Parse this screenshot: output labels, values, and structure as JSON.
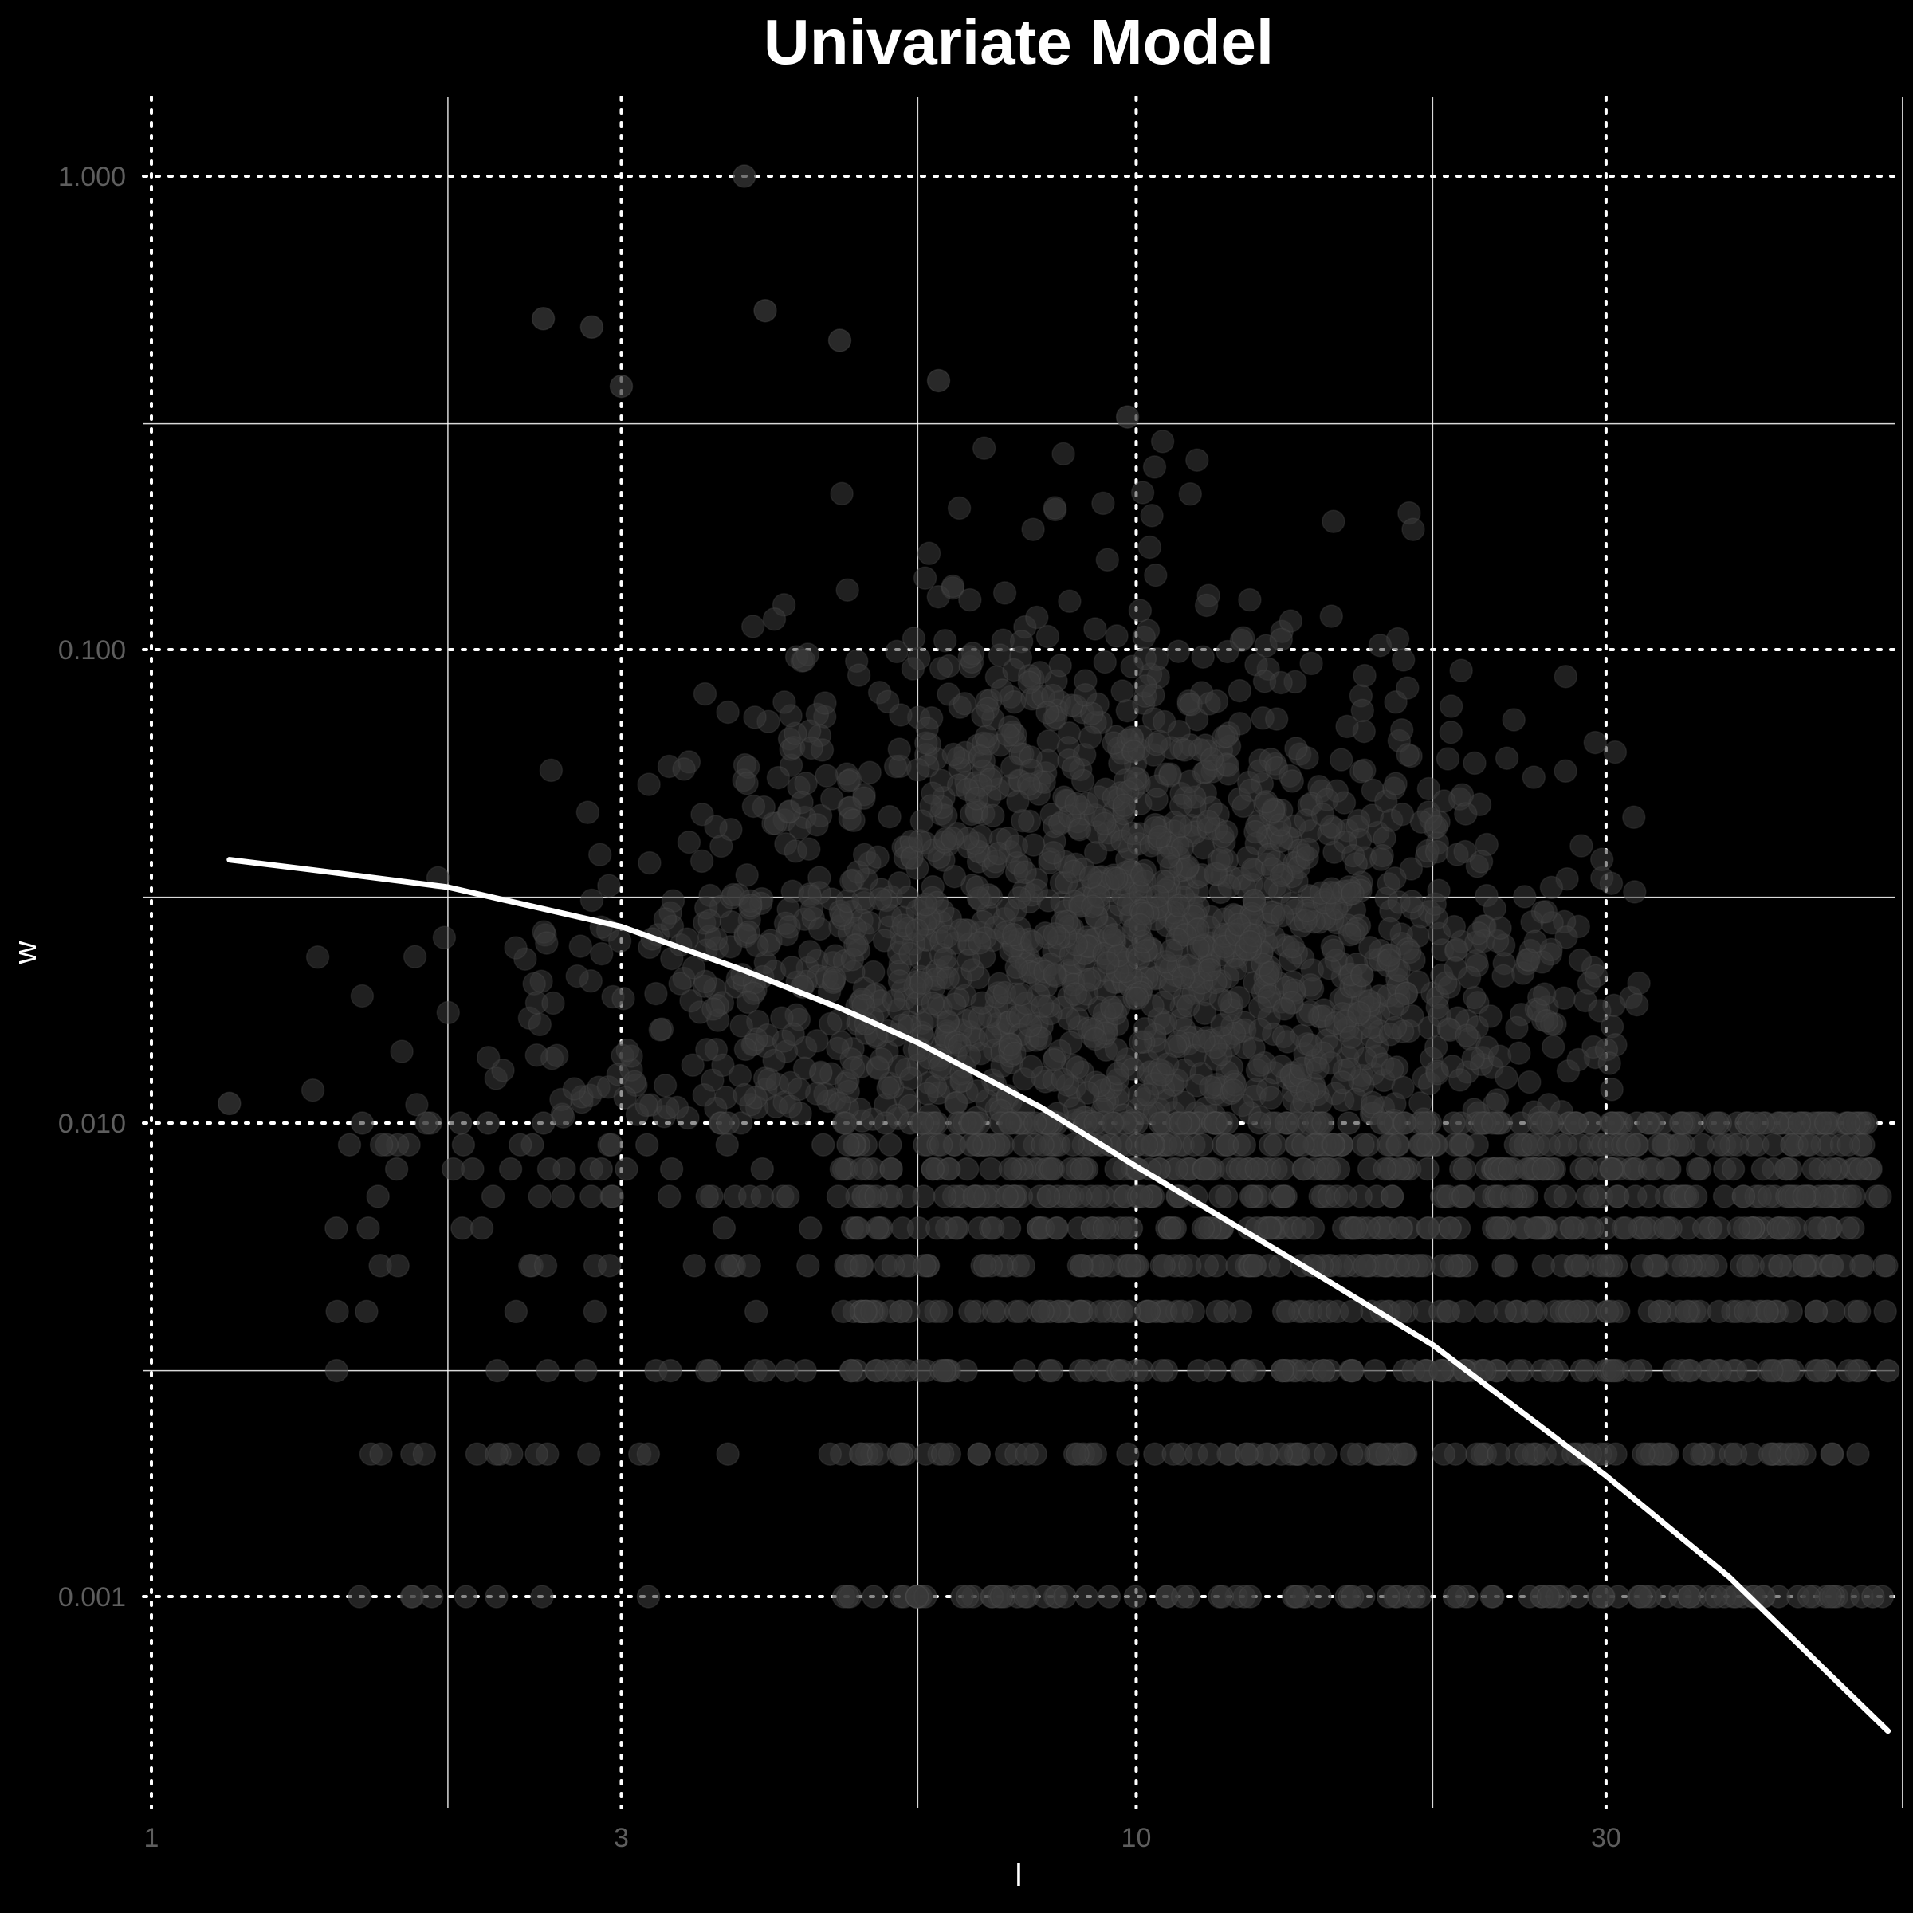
{
  "chart_data": {
    "type": "scatter",
    "title": "Univariate Model",
    "xlabel": "l",
    "ylabel": "w",
    "x_scale": "log",
    "y_scale": "log",
    "xlim": [
      1,
      60
    ],
    "ylim": [
      0.0003,
      1.5
    ],
    "x_ticks": [
      {
        "value": 1,
        "label": "1"
      },
      {
        "value": 3,
        "label": "3"
      },
      {
        "value": 10,
        "label": "10"
      },
      {
        "value": 30,
        "label": "30"
      }
    ],
    "y_ticks": [
      {
        "value": 0.001,
        "label": "0.001"
      },
      {
        "value": 0.01,
        "label": "0.010"
      },
      {
        "value": 0.1,
        "label": "0.100"
      },
      {
        "value": 1,
        "label": "1.000"
      }
    ],
    "x_grid": {
      "major": [
        1,
        3,
        10,
        30
      ],
      "minor": [
        2,
        6,
        20,
        60
      ]
    },
    "y_grid": {
      "major": [
        0.001,
        0.01,
        0.1,
        1
      ],
      "minor": [
        0.003,
        0.03,
        0.3
      ]
    },
    "grid": true,
    "legend": "none",
    "colors": {
      "background": "#000000",
      "points": "#3a3a3a",
      "fit_line": "#ffffff",
      "major_grid": "#ffffff",
      "minor_grid": "#ffffff",
      "tick_text": "#5e5e5e"
    },
    "scatter": {
      "x_range": [
        1.2,
        58
      ],
      "y_range": [
        0.001,
        1.0
      ],
      "y_levels": [
        0.001,
        0.002,
        0.003,
        0.004,
        0.005,
        0.006,
        0.007,
        0.008,
        0.009,
        0.01
      ],
      "notable_points": [
        {
          "x": 4.0,
          "y": 1.0
        },
        {
          "x": 2.5,
          "y": 0.5
        },
        {
          "x": 2.8,
          "y": 0.48
        },
        {
          "x": 4.2,
          "y": 0.52
        },
        {
          "x": 5.0,
          "y": 0.45
        },
        {
          "x": 6.3,
          "y": 0.37
        },
        {
          "x": 3.0,
          "y": 0.36
        },
        {
          "x": 9.8,
          "y": 0.31
        },
        {
          "x": 1.2,
          "y": 0.011
        },
        {
          "x": 58.0,
          "y": 0.003
        },
        {
          "x": 56.0,
          "y": 0.001
        }
      ]
    },
    "fit_line": [
      {
        "x": 1.2,
        "y": 0.036
      },
      {
        "x": 1.5,
        "y": 0.034
      },
      {
        "x": 2.0,
        "y": 0.0315
      },
      {
        "x": 3.0,
        "y": 0.026
      },
      {
        "x": 4.0,
        "y": 0.021
      },
      {
        "x": 5.0,
        "y": 0.0175
      },
      {
        "x": 6.0,
        "y": 0.0148
      },
      {
        "x": 8.0,
        "y": 0.0108
      },
      {
        "x": 10.0,
        "y": 0.0081
      },
      {
        "x": 15.0,
        "y": 0.0049
      },
      {
        "x": 20.0,
        "y": 0.0034
      },
      {
        "x": 30.0,
        "y": 0.0018
      },
      {
        "x": 40.0,
        "y": 0.0011
      },
      {
        "x": 58.0,
        "y": 0.00052
      }
    ]
  }
}
